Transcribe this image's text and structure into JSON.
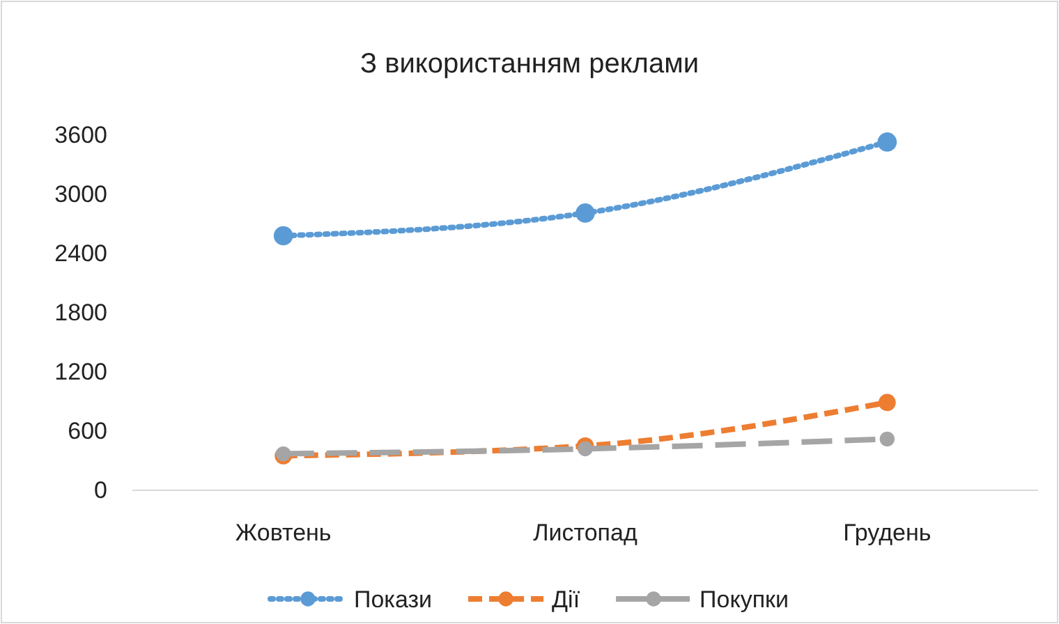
{
  "chart_data": {
    "type": "line",
    "title": "З використанням реклами",
    "categories": [
      "Жовтень",
      "Листопад",
      "Грудень"
    ],
    "series": [
      {
        "name": "Покази",
        "color": "#5b9bd5",
        "line_style": "dotted",
        "values": [
          2580,
          2810,
          3530
        ]
      },
      {
        "name": "Дії",
        "color": "#ed7d31",
        "line_style": "dashed",
        "values": [
          350,
          450,
          890
        ]
      },
      {
        "name": "Покупки",
        "color": "#a5a5a5",
        "line_style": "long-dashed",
        "values": [
          370,
          420,
          520
        ]
      }
    ],
    "ylim": [
      0,
      3600
    ],
    "yticks": [
      0,
      600,
      1200,
      1800,
      2400,
      3000,
      3600
    ],
    "grid": false,
    "legend": "bottom",
    "marker": "circle"
  }
}
